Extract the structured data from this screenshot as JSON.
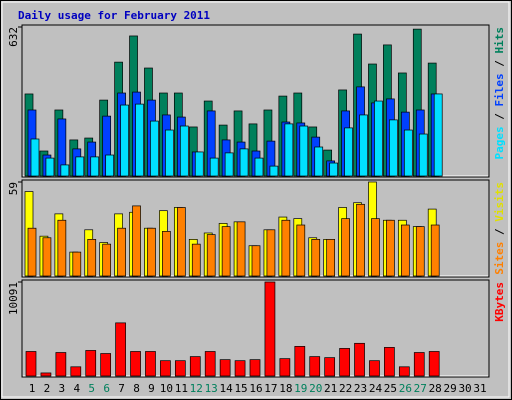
{
  "legend_separator": " / ",
  "chart_data": [
    {
      "type": "bar",
      "title": "Daily usage for February 2011",
      "ylim": [
        0,
        632
      ],
      "yticks": [
        632
      ],
      "series": [
        {
          "name": "Hits",
          "color": "#00805c",
          "values": [
            348,
            106,
            280,
            153,
            161,
            322,
            483,
            594,
            458,
            352,
            352,
            208,
            318,
            216,
            276,
            221,
            280,
            339,
            352,
            208,
            110,
            365,
            602,
            475,
            556,
            437,
            623,
            479,
            null,
            null,
            null
          ]
        },
        {
          "name": "Files",
          "color": "#0040ff",
          "values": [
            280,
            89,
            242,
            115,
            144,
            254,
            352,
            356,
            322,
            259,
            250,
            102,
            276,
            153,
            144,
            106,
            148,
            229,
            225,
            165,
            64,
            276,
            378,
            310,
            327,
            271,
            280,
            348,
            null,
            null,
            null
          ]
        },
        {
          "name": "Pages",
          "color": "#00e0ff",
          "values": [
            157,
            76,
            47,
            81,
            81,
            89,
            301,
            305,
            233,
            195,
            212,
            102,
            76,
            98,
            115,
            76,
            42,
            221,
            212,
            123,
            55,
            204,
            259,
            318,
            238,
            195,
            178,
            348,
            null,
            null,
            null
          ]
        }
      ],
      "legend_order": [
        2,
        1,
        0
      ]
    },
    {
      "type": "bar",
      "ylim": [
        0,
        59
      ],
      "yticks": [
        59
      ],
      "series": [
        {
          "name": "Visits",
          "color": "#ffff00",
          "values": [
            53,
            25,
            39,
            15,
            29,
            21,
            39,
            40,
            30,
            41,
            43,
            23,
            27,
            33,
            34,
            19,
            29,
            37,
            36,
            24,
            23,
            43,
            46,
            59,
            35,
            35,
            31,
            42,
            null,
            null,
            null
          ]
        },
        {
          "name": "Sites",
          "color": "#ff8000",
          "values": [
            30,
            24,
            35,
            15,
            23,
            20,
            30,
            44,
            30,
            28,
            43,
            20,
            26,
            31,
            34,
            19,
            29,
            35,
            32,
            23,
            23,
            36,
            45,
            36,
            35,
            32,
            31,
            32,
            null,
            null,
            null
          ]
        }
      ],
      "legend_order": [
        1,
        0
      ]
    },
    {
      "type": "bar",
      "ylim": [
        0,
        10091
      ],
      "yticks": [
        10091
      ],
      "categories": [
        "1",
        "2",
        "3",
        "4",
        "5",
        "6",
        "7",
        "8",
        "9",
        "10",
        "11",
        "12",
        "13",
        "14",
        "15",
        "16",
        "17",
        "18",
        "19",
        "20",
        "21",
        "22",
        "23",
        "24",
        "25",
        "26",
        "27",
        "28",
        "29",
        "30",
        "31"
      ],
      "category_colors": [
        "#000",
        "#000",
        "#000",
        "#000",
        "#00805c",
        "#00805c",
        "#000",
        "#000",
        "#000",
        "#000",
        "#000",
        "#00805c",
        "#00805c",
        "#000",
        "#000",
        "#000",
        "#000",
        "#000",
        "#00805c",
        "#00805c",
        "#000",
        "#000",
        "#000",
        "#000",
        "#000",
        "#00805c",
        "#00805c",
        "#000",
        "#000",
        "#000",
        "#000"
      ],
      "series": [
        {
          "name": "KBytes",
          "color": "#ff0000",
          "values": [
            2632,
            329,
            2522,
            987,
            2742,
            2413,
            5703,
            2632,
            2632,
            1645,
            1645,
            2084,
            2632,
            1755,
            1645,
            1755,
            10091,
            1865,
            3180,
            2084,
            1974,
            2961,
            3510,
            1645,
            3071,
            987,
            2522,
            2632,
            null,
            null,
            null
          ]
        }
      ],
      "legend_order": [
        0
      ]
    }
  ]
}
